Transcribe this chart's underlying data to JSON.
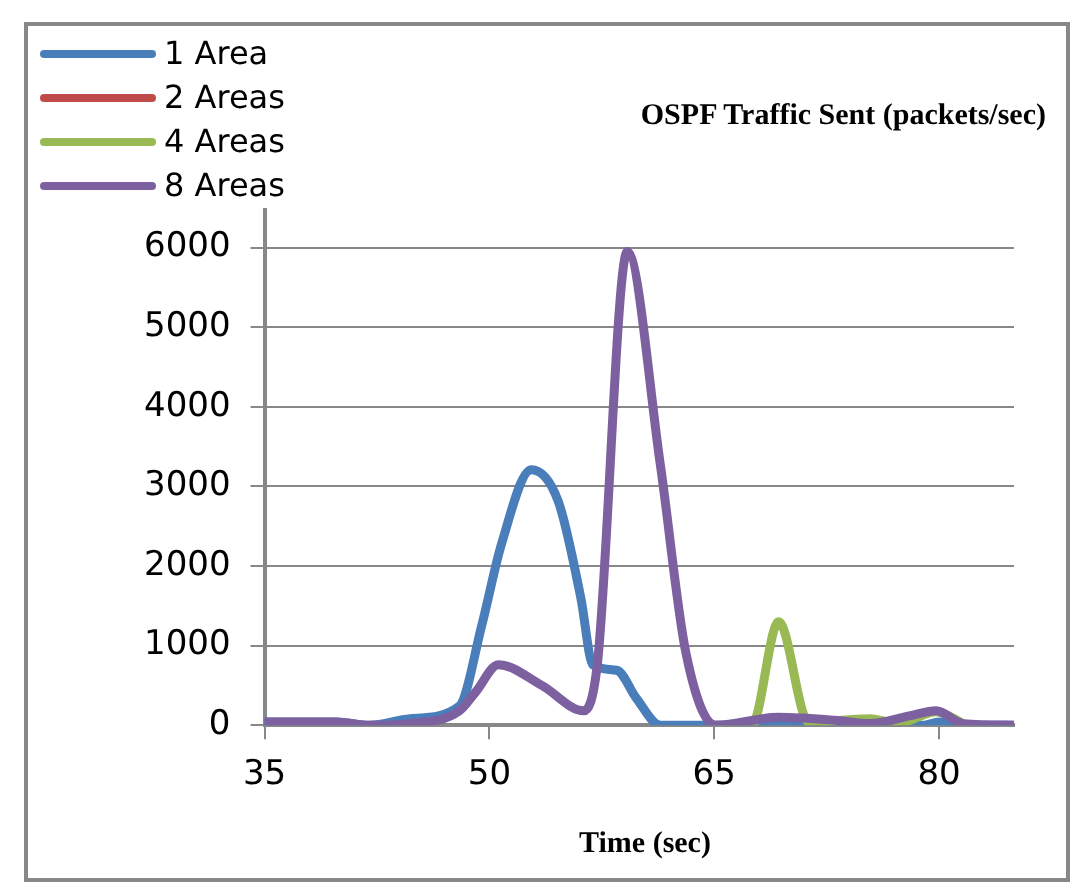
{
  "chart_data": {
    "type": "line",
    "title": "OSPF Traffic Sent (packets/sec)",
    "xlabel": "Time (sec)",
    "xlim": [
      35,
      85
    ],
    "xticks": [
      35,
      50,
      65,
      80
    ],
    "ylim": [
      0,
      7000
    ],
    "yticks": [
      0,
      1000,
      2000,
      3000,
      4000,
      5000,
      6000
    ],
    "grid": "y",
    "legend": "top left",
    "marker": "none",
    "line_style": "solid",
    "series": [
      {
        "name": "1 Area",
        "color": "#4a7ebb",
        "x": [
          35,
          39.8,
          42,
          44.7,
          48,
          49.5,
          50.8,
          52.8,
          54.6,
          56.1,
          56.9,
          58.5,
          59.8,
          61.4,
          64.9,
          79,
          80,
          81.6,
          85
        ],
        "values": [
          40,
          40,
          0,
          80,
          240,
          1260,
          2270,
          3210,
          2810,
          1600,
          760,
          690,
          340,
          0,
          0,
          0,
          40,
          0,
          0
        ]
      },
      {
        "name": "2 Areas",
        "color": "#be4b48"
      },
      {
        "name": "4 Areas",
        "color": "#98b954",
        "x": [
          65.1,
          67.5,
          69.3,
          71.3,
          75.4,
          77.2,
          79.8,
          81.6
        ],
        "values": [
          0,
          0,
          1300,
          40,
          80,
          20,
          170,
          20
        ]
      },
      {
        "name": "8 Areas",
        "color": "#7d60a0",
        "x": [
          35,
          39.8,
          42,
          44.7,
          48,
          49.1,
          50.6,
          53.5,
          56.3,
          57.2,
          59.2,
          61.4,
          63.1,
          65.1,
          69.3,
          73.2,
          75.4,
          78.1,
          79.8,
          81.6,
          85
        ],
        "values": [
          40,
          40,
          0,
          20,
          180,
          420,
          760,
          500,
          180,
          760,
          5950,
          3280,
          920,
          0,
          100,
          60,
          20,
          120,
          180,
          20,
          0
        ]
      }
    ]
  }
}
